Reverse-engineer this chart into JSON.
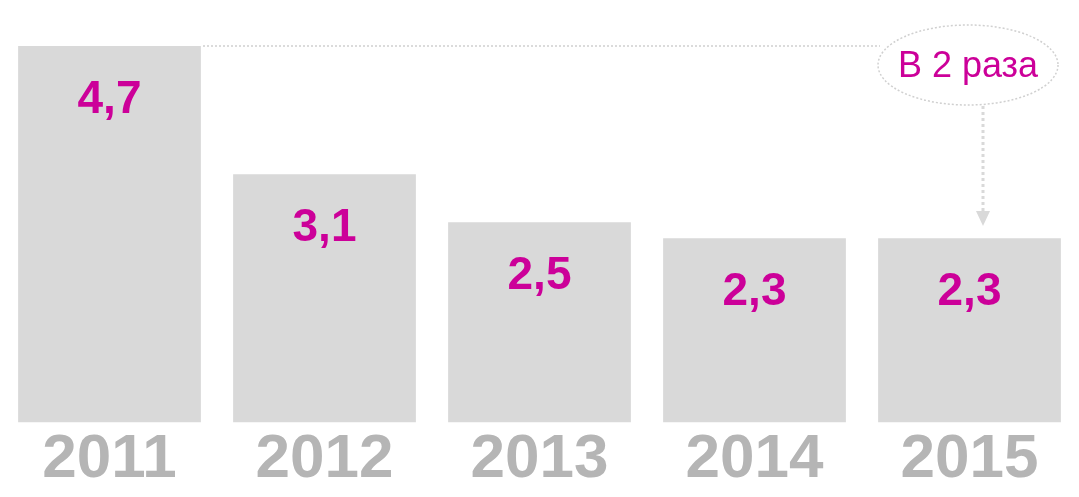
{
  "chart_data": {
    "type": "bar",
    "categories": [
      "2011",
      "2012",
      "2013",
      "2014",
      "2015"
    ],
    "values": [
      4.7,
      3.1,
      2.5,
      2.3,
      2.3
    ],
    "color": "#d9d9d9",
    "value_labels": [
      "4,7",
      "3,1",
      "2,5",
      "2,3",
      "2,3"
    ],
    "annotations": [
      "В 2 раза"
    ],
    "grid": false,
    "legend": false
  }
}
